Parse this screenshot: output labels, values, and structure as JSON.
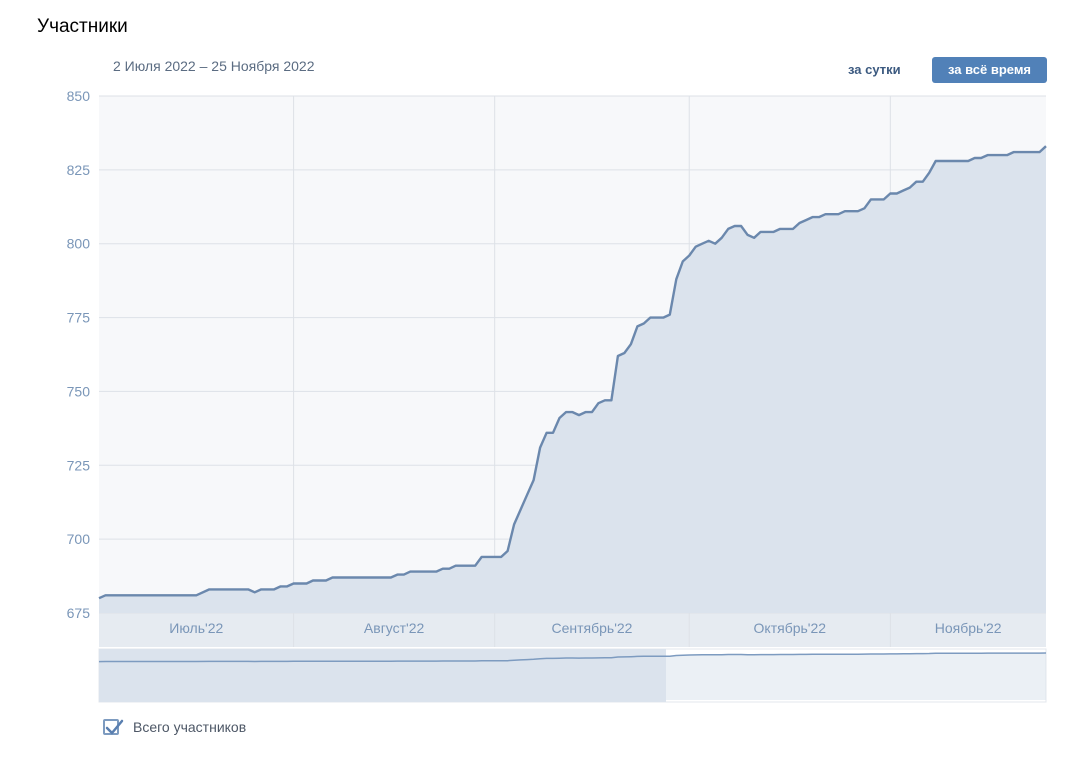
{
  "page": {
    "title": "Участники",
    "date_range": "2 Июля 2022 – 25 Ноября 2022",
    "buttons": {
      "day": "за сутки",
      "all_time": "за всё время"
    },
    "legend": {
      "label": "Всего участников",
      "checked": true
    }
  },
  "colors": {
    "line": "#6b88ad",
    "area": "#dbe3ed",
    "grid": "#dde1e7",
    "axis_text": "#7a96b8",
    "button_active": "#5181b8"
  },
  "chart_data": {
    "type": "area",
    "title": "",
    "xlabel": "",
    "ylabel": "",
    "ylim": [
      675,
      850
    ],
    "yticks": [
      675,
      700,
      725,
      750,
      775,
      800,
      825,
      850
    ],
    "xlim": [
      "2022-07-02",
      "2022-11-25"
    ],
    "month_labels": [
      {
        "label": "Июль'22",
        "start": "2022-07-02",
        "end": "2022-08-01"
      },
      {
        "label": "Август'22",
        "start": "2022-08-01",
        "end": "2022-09-01"
      },
      {
        "label": "Сентябрь'22",
        "start": "2022-09-01",
        "end": "2022-10-01"
      },
      {
        "label": "Октябрь'22",
        "start": "2022-10-01",
        "end": "2022-11-01"
      },
      {
        "label": "Ноябрь'22",
        "start": "2022-11-01",
        "end": "2022-11-25"
      }
    ],
    "grid": true,
    "legend_position": "bottom-left",
    "series": [
      {
        "name": "Всего участников",
        "points": [
          [
            "2022-07-02",
            680
          ],
          [
            "2022-07-03",
            681
          ],
          [
            "2022-07-08",
            681
          ],
          [
            "2022-07-13",
            681
          ],
          [
            "2022-07-17",
            681
          ],
          [
            "2022-07-19",
            683
          ],
          [
            "2022-07-23",
            683
          ],
          [
            "2022-07-25",
            683
          ],
          [
            "2022-07-26",
            682
          ],
          [
            "2022-07-27",
            683
          ],
          [
            "2022-07-29",
            683
          ],
          [
            "2022-07-30",
            684
          ],
          [
            "2022-07-31",
            684
          ],
          [
            "2022-08-01",
            685
          ],
          [
            "2022-08-03",
            685
          ],
          [
            "2022-08-04",
            686
          ],
          [
            "2022-08-06",
            686
          ],
          [
            "2022-08-07",
            687
          ],
          [
            "2022-08-12",
            687
          ],
          [
            "2022-08-16",
            687
          ],
          [
            "2022-08-17",
            688
          ],
          [
            "2022-08-18",
            688
          ],
          [
            "2022-08-19",
            689
          ],
          [
            "2022-08-23",
            689
          ],
          [
            "2022-08-24",
            690
          ],
          [
            "2022-08-25",
            690
          ],
          [
            "2022-08-26",
            691
          ],
          [
            "2022-08-29",
            691
          ],
          [
            "2022-08-30",
            694
          ],
          [
            "2022-09-02",
            694
          ],
          [
            "2022-09-03",
            696
          ],
          [
            "2022-09-04",
            705
          ],
          [
            "2022-09-05",
            710
          ],
          [
            "2022-09-06",
            715
          ],
          [
            "2022-09-07",
            720
          ],
          [
            "2022-09-08",
            731
          ],
          [
            "2022-09-09",
            736
          ],
          [
            "2022-09-10",
            736
          ],
          [
            "2022-09-11",
            741
          ],
          [
            "2022-09-12",
            743
          ],
          [
            "2022-09-13",
            743
          ],
          [
            "2022-09-14",
            742
          ],
          [
            "2022-09-15",
            743
          ],
          [
            "2022-09-16",
            743
          ],
          [
            "2022-09-17",
            746
          ],
          [
            "2022-09-18",
            747
          ],
          [
            "2022-09-19",
            747
          ],
          [
            "2022-09-20",
            762
          ],
          [
            "2022-09-21",
            763
          ],
          [
            "2022-09-22",
            766
          ],
          [
            "2022-09-23",
            772
          ],
          [
            "2022-09-24",
            773
          ],
          [
            "2022-09-25",
            775
          ],
          [
            "2022-09-27",
            775
          ],
          [
            "2022-09-28",
            776
          ],
          [
            "2022-09-29",
            788
          ],
          [
            "2022-09-30",
            794
          ],
          [
            "2022-10-01",
            796
          ],
          [
            "2022-10-02",
            799
          ],
          [
            "2022-10-03",
            800
          ],
          [
            "2022-10-04",
            801
          ],
          [
            "2022-10-05",
            800
          ],
          [
            "2022-10-06",
            802
          ],
          [
            "2022-10-07",
            805
          ],
          [
            "2022-10-08",
            806
          ],
          [
            "2022-10-09",
            806
          ],
          [
            "2022-10-10",
            803
          ],
          [
            "2022-10-11",
            802
          ],
          [
            "2022-10-12",
            804
          ],
          [
            "2022-10-14",
            804
          ],
          [
            "2022-10-15",
            805
          ],
          [
            "2022-10-17",
            805
          ],
          [
            "2022-10-18",
            807
          ],
          [
            "2022-10-19",
            808
          ],
          [
            "2022-10-20",
            809
          ],
          [
            "2022-10-21",
            809
          ],
          [
            "2022-10-22",
            810
          ],
          [
            "2022-10-24",
            810
          ],
          [
            "2022-10-25",
            811
          ],
          [
            "2022-10-27",
            811
          ],
          [
            "2022-10-28",
            812
          ],
          [
            "2022-10-29",
            815
          ],
          [
            "2022-10-31",
            815
          ],
          [
            "2022-11-01",
            817
          ],
          [
            "2022-11-02",
            817
          ],
          [
            "2022-11-03",
            818
          ],
          [
            "2022-11-04",
            819
          ],
          [
            "2022-11-05",
            821
          ],
          [
            "2022-11-06",
            821
          ],
          [
            "2022-11-07",
            824
          ],
          [
            "2022-11-08",
            828
          ],
          [
            "2022-11-13",
            828
          ],
          [
            "2022-11-14",
            829
          ],
          [
            "2022-11-15",
            829
          ],
          [
            "2022-11-16",
            830
          ],
          [
            "2022-11-19",
            830
          ],
          [
            "2022-11-20",
            831
          ],
          [
            "2022-11-24",
            831
          ],
          [
            "2022-11-25",
            833
          ]
        ]
      }
    ]
  }
}
